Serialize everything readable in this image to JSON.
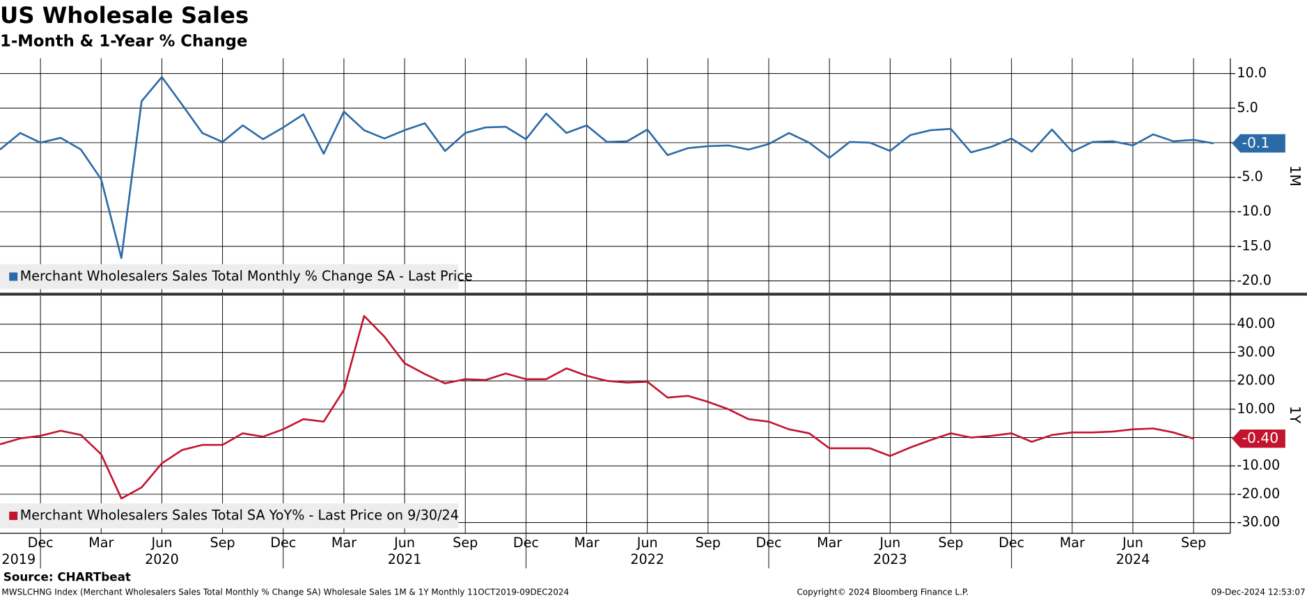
{
  "header": {
    "title": "US Wholesale Sales",
    "subtitle": "1-Month & 1-Year % Change"
  },
  "chart_data": [
    {
      "type": "line",
      "axis_label": "1M",
      "x": [
        "2019-10",
        "2019-11",
        "2019-12",
        "2020-01",
        "2020-02",
        "2020-03",
        "2020-04",
        "2020-05",
        "2020-06",
        "2020-07",
        "2020-08",
        "2020-09",
        "2020-10",
        "2020-11",
        "2020-12",
        "2021-01",
        "2021-02",
        "2021-03",
        "2021-04",
        "2021-05",
        "2021-06",
        "2021-07",
        "2021-08",
        "2021-09",
        "2021-10",
        "2021-11",
        "2021-12",
        "2022-01",
        "2022-02",
        "2022-03",
        "2022-04",
        "2022-05",
        "2022-06",
        "2022-07",
        "2022-08",
        "2022-09",
        "2022-10",
        "2022-11",
        "2022-12",
        "2023-01",
        "2023-02",
        "2023-03",
        "2023-04",
        "2023-05",
        "2023-06",
        "2023-07",
        "2023-08",
        "2023-09",
        "2023-10",
        "2023-11",
        "2023-12",
        "2024-01",
        "2024-02",
        "2024-03",
        "2024-04",
        "2024-05",
        "2024-06",
        "2024-07",
        "2024-08",
        "2024-09",
        "2024-10"
      ],
      "series": [
        {
          "name": "Merchant Wholesalers Sales Total Monthly % Change SA - Last Price",
          "color": "#2b6aa6",
          "values": [
            -1.0,
            1.4,
            0.0,
            0.7,
            -1.0,
            -5.3,
            -16.7,
            6.0,
            9.5,
            5.5,
            1.4,
            0.1,
            2.5,
            0.5,
            2.2,
            4.1,
            -1.6,
            4.5,
            1.8,
            0.6,
            1.8,
            2.8,
            -1.2,
            1.4,
            2.2,
            2.3,
            0.5,
            4.2,
            1.4,
            2.5,
            0.1,
            0.2,
            1.9,
            -1.8,
            -0.8,
            -0.5,
            -0.4,
            -1.0,
            -0.2,
            1.4,
            0.0,
            -2.2,
            0.1,
            0.0,
            -1.2,
            1.1,
            1.8,
            2.0,
            -1.4,
            -0.6,
            0.6,
            -1.3,
            1.9,
            -1.3,
            0.1,
            0.2,
            -0.4,
            1.2,
            0.2,
            0.4,
            -0.1
          ],
          "value_labels": [
            null,
            null,
            null,
            null,
            null,
            null,
            null,
            null,
            null,
            null,
            null,
            null,
            null,
            null,
            null,
            null,
            null,
            null,
            null,
            null,
            null,
            null,
            null,
            null,
            null,
            null,
            null,
            null,
            null,
            null,
            null,
            null,
            null,
            null,
            null,
            null,
            null,
            null,
            null,
            null,
            null,
            null,
            null,
            null,
            null,
            null,
            null,
            null,
            null,
            null,
            null,
            null,
            null,
            null,
            null,
            null,
            null,
            null,
            null,
            null,
            "-0.1"
          ]
        }
      ],
      "ylim": [
        -21.8,
        12.2
      ],
      "yticks": [
        {
          "value": 10,
          "label": "10.0"
        },
        {
          "value": 5,
          "label": "5.0"
        },
        {
          "value": 0,
          "label": "0.0"
        },
        {
          "value": -5,
          "label": "-5.0"
        },
        {
          "value": -10,
          "label": "-10.0"
        },
        {
          "value": -15,
          "label": "-15.0"
        },
        {
          "value": -20,
          "label": "-20.0"
        }
      ],
      "grid": true
    },
    {
      "type": "line",
      "axis_label": "1Y",
      "x": [
        "2019-10",
        "2019-11",
        "2019-12",
        "2020-01",
        "2020-02",
        "2020-03",
        "2020-04",
        "2020-05",
        "2020-06",
        "2020-07",
        "2020-08",
        "2020-09",
        "2020-10",
        "2020-11",
        "2020-12",
        "2021-01",
        "2021-02",
        "2021-03",
        "2021-04",
        "2021-05",
        "2021-06",
        "2021-07",
        "2021-08",
        "2021-09",
        "2021-10",
        "2021-11",
        "2021-12",
        "2022-01",
        "2022-02",
        "2022-03",
        "2022-04",
        "2022-05",
        "2022-06",
        "2022-07",
        "2022-08",
        "2022-09",
        "2022-10",
        "2022-11",
        "2022-12",
        "2023-01",
        "2023-02",
        "2023-03",
        "2023-04",
        "2023-05",
        "2023-06",
        "2023-07",
        "2023-08",
        "2023-09",
        "2023-10",
        "2023-11",
        "2023-12",
        "2024-01",
        "2024-02",
        "2024-03",
        "2024-04",
        "2024-05",
        "2024-06",
        "2024-07",
        "2024-08",
        "2024-09",
        "2024-10"
      ],
      "series": [
        {
          "name": "Merchant Wholesalers Sales Total SA YoY% - Last Price on 9/30/24",
          "color": "#c2142e",
          "values": [
            -2.4,
            -0.3,
            0.6,
            2.4,
            0.9,
            -5.9,
            -21.5,
            -17.6,
            -9.1,
            -4.4,
            -2.6,
            -2.6,
            1.5,
            0.3,
            2.9,
            6.5,
            5.6,
            16.8,
            42.9,
            35.6,
            26.2,
            22.4,
            19.1,
            20.6,
            20.3,
            22.6,
            20.6,
            20.6,
            24.4,
            21.8,
            20.0,
            19.4,
            19.7,
            14.1,
            14.7,
            12.6,
            10.0,
            6.5,
            5.6,
            2.9,
            1.5,
            -3.8,
            -3.8,
            -3.8,
            -6.5,
            -3.5,
            -0.9,
            1.5,
            0.0,
            0.6,
            1.5,
            -1.5,
            0.9,
            1.8,
            1.8,
            2.1,
            2.9,
            3.2,
            1.8,
            -0.4,
            null
          ],
          "value_labels": [
            null,
            null,
            null,
            null,
            null,
            null,
            null,
            null,
            null,
            null,
            null,
            null,
            null,
            null,
            null,
            null,
            null,
            null,
            null,
            null,
            null,
            null,
            null,
            null,
            null,
            null,
            null,
            null,
            null,
            null,
            null,
            null,
            null,
            null,
            null,
            null,
            null,
            null,
            null,
            null,
            null,
            null,
            null,
            null,
            null,
            null,
            null,
            null,
            null,
            null,
            null,
            null,
            null,
            null,
            null,
            null,
            null,
            null,
            null,
            "-0.40",
            null
          ]
        }
      ],
      "ylim": [
        -33.8,
        50
      ],
      "yticks": [
        {
          "value": 40,
          "label": "40.00"
        },
        {
          "value": 30,
          "label": "30.00"
        },
        {
          "value": 20,
          "label": "20.00"
        },
        {
          "value": 10,
          "label": "10.00"
        },
        {
          "value": 0,
          "label": "0.00"
        },
        {
          "value": -10,
          "label": "-10.00"
        },
        {
          "value": -20,
          "label": "-20.00"
        },
        {
          "value": -30,
          "label": "-30.00"
        }
      ],
      "grid": true,
      "xticks": [
        {
          "value": "2019-12",
          "label": "Dec"
        },
        {
          "value": "2020-03",
          "label": "Mar"
        },
        {
          "value": "2020-06",
          "label": "Jun"
        },
        {
          "value": "2020-09",
          "label": "Sep"
        },
        {
          "value": "2020-12",
          "label": "Dec"
        },
        {
          "value": "2021-03",
          "label": "Mar"
        },
        {
          "value": "2021-06",
          "label": "Jun"
        },
        {
          "value": "2021-09",
          "label": "Sep"
        },
        {
          "value": "2021-12",
          "label": "Dec"
        },
        {
          "value": "2022-03",
          "label": "Mar"
        },
        {
          "value": "2022-06",
          "label": "Jun"
        },
        {
          "value": "2022-09",
          "label": "Sep"
        },
        {
          "value": "2022-12",
          "label": "Dec"
        },
        {
          "value": "2023-03",
          "label": "Mar"
        },
        {
          "value": "2023-06",
          "label": "Jun"
        },
        {
          "value": "2023-09",
          "label": "Sep"
        },
        {
          "value": "2023-12",
          "label": "Dec"
        },
        {
          "value": "2024-03",
          "label": "Mar"
        },
        {
          "value": "2024-06",
          "label": "Jun"
        },
        {
          "value": "2024-09",
          "label": "Sep"
        }
      ],
      "year_ticks": [
        2019,
        2020,
        2021,
        2022,
        2023,
        2024
      ]
    }
  ],
  "footer": {
    "source": "Source: CHARTbeat",
    "description": "MWSLCHNG Index (Merchant Wholesalers Sales Total Monthly % Change SA) Wholesale Sales 1M & 1Y  Monthly 11OCT2019-09DEC2024",
    "copyright": "Copyright© 2024 Bloomberg Finance L.P.",
    "timestamp": "09-Dec-2024 12:53:07"
  }
}
